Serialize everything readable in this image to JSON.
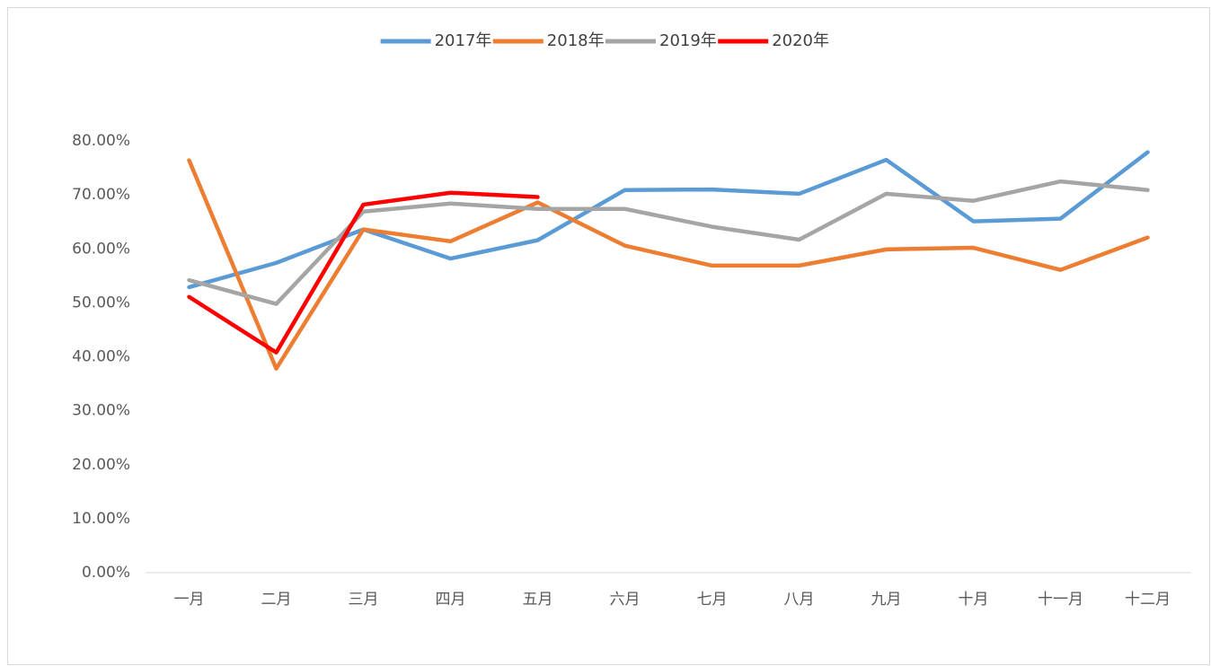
{
  "chart_data": {
    "type": "line",
    "categories": [
      "一月",
      "二月",
      "三月",
      "四月",
      "五月",
      "六月",
      "七月",
      "八月",
      "九月",
      "十月",
      "十一月",
      "十二月"
    ],
    "series": [
      {
        "name": "2017年",
        "color": "#5b9bd5",
        "values": [
          52.9,
          57.4,
          63.6,
          58.2,
          61.6,
          70.9,
          71.0,
          70.2,
          76.5,
          65.1,
          65.6,
          77.9
        ]
      },
      {
        "name": "2018年",
        "color": "#ed7d31",
        "values": [
          76.4,
          37.8,
          63.6,
          61.4,
          68.6,
          60.6,
          56.9,
          56.9,
          59.9,
          60.2,
          56.1,
          62.1
        ]
      },
      {
        "name": "2019年",
        "color": "#a5a5a5",
        "values": [
          54.2,
          49.8,
          66.9,
          68.4,
          67.4,
          67.4,
          64.1,
          61.7,
          70.2,
          68.9,
          72.5,
          70.9
        ]
      },
      {
        "name": "2020年",
        "color": "#ff0000",
        "values": [
          51.1,
          40.8,
          68.2,
          70.4,
          69.6,
          null,
          null,
          null,
          null,
          null,
          null,
          null
        ]
      }
    ],
    "ylim": [
      0,
      80
    ],
    "yticks": [
      {
        "value": 0,
        "label": "0.00%"
      },
      {
        "value": 10,
        "label": "10.00%"
      },
      {
        "value": 20,
        "label": "20.00%"
      },
      {
        "value": 30,
        "label": "30.00%"
      },
      {
        "value": 40,
        "label": "40.00%"
      },
      {
        "value": 50,
        "label": "50.00%"
      },
      {
        "value": 60,
        "label": "60.00%"
      },
      {
        "value": 70,
        "label": "70.00%"
      },
      {
        "value": 80,
        "label": "80.00%"
      }
    ],
    "legend": "top"
  }
}
